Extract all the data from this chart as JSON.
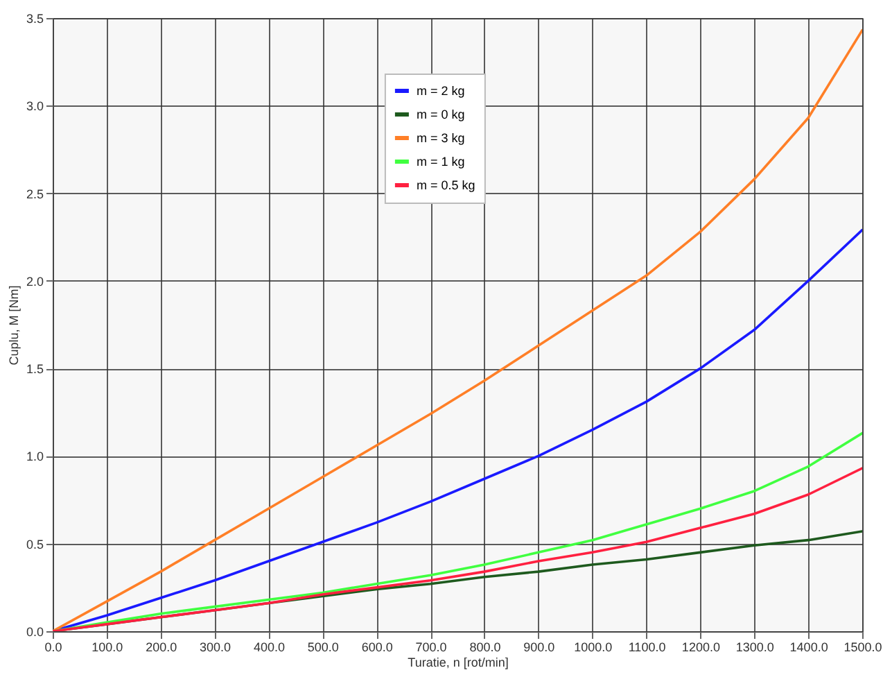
{
  "chart_data": {
    "type": "line",
    "xlabel": "Turatie, n [rot/min]",
    "ylabel": "Cuplu, M [Nm]",
    "x": [
      0,
      100,
      200,
      300,
      400,
      500,
      600,
      700,
      800,
      900,
      1000,
      1100,
      1200,
      1300,
      1400,
      1500
    ],
    "series": [
      {
        "name": "m = 2 kg",
        "color": "#1a1aff",
        "values": [
          0,
          0.09,
          0.19,
          0.29,
          0.4,
          0.51,
          0.62,
          0.74,
          0.87,
          1.0,
          1.15,
          1.31,
          1.5,
          1.72,
          2.0,
          2.29
        ]
      },
      {
        "name": "m = 0 kg",
        "color": "#1e5a1e",
        "values": [
          0,
          0.04,
          0.08,
          0.12,
          0.16,
          0.2,
          0.24,
          0.27,
          0.31,
          0.34,
          0.38,
          0.41,
          0.45,
          0.49,
          0.52,
          0.57
        ]
      },
      {
        "name": "m = 3 kg",
        "color": "#ff7f27",
        "values": [
          0,
          0.17,
          0.34,
          0.52,
          0.7,
          0.88,
          1.06,
          1.24,
          1.43,
          1.63,
          1.83,
          2.03,
          2.28,
          2.58,
          2.93,
          3.43
        ]
      },
      {
        "name": "m = 1 kg",
        "color": "#40ff40",
        "values": [
          0,
          0.05,
          0.1,
          0.14,
          0.18,
          0.22,
          0.27,
          0.32,
          0.38,
          0.45,
          0.52,
          0.61,
          0.7,
          0.8,
          0.94,
          1.13
        ]
      },
      {
        "name": "m = 0.5 kg",
        "color": "#ff2040",
        "values": [
          0,
          0.04,
          0.08,
          0.12,
          0.16,
          0.21,
          0.25,
          0.29,
          0.34,
          0.4,
          0.45,
          0.51,
          0.59,
          0.67,
          0.78,
          0.93
        ]
      }
    ],
    "xlim": [
      0,
      1500
    ],
    "xticks": [
      {
        "value": 0,
        "label": "0.0"
      },
      {
        "value": 100,
        "label": "100.0"
      },
      {
        "value": 200,
        "label": "200.0"
      },
      {
        "value": 300,
        "label": "300.0"
      },
      {
        "value": 400,
        "label": "400.0"
      },
      {
        "value": 500,
        "label": "500.0"
      },
      {
        "value": 600,
        "label": "600.0"
      },
      {
        "value": 700,
        "label": "700.0"
      },
      {
        "value": 800,
        "label": "800.0"
      },
      {
        "value": 900,
        "label": "900.0"
      },
      {
        "value": 1000,
        "label": "1000.0"
      },
      {
        "value": 1100,
        "label": "1100.0"
      },
      {
        "value": 1200,
        "label": "1200.0"
      },
      {
        "value": 1300,
        "label": "1300.0"
      },
      {
        "value": 1400,
        "label": "1400.0"
      },
      {
        "value": 1500,
        "label": "1500.0"
      }
    ],
    "ylim": [
      0,
      3.5
    ],
    "yticks": [
      {
        "value": 0,
        "label": "0.0"
      },
      {
        "value": 0.5,
        "label": "0.5"
      },
      {
        "value": 1,
        "label": "1.0"
      },
      {
        "value": 1.5,
        "label": "1.5"
      },
      {
        "value": 2,
        "label": "2.0"
      },
      {
        "value": 2.5,
        "label": "2.5"
      },
      {
        "value": 3,
        "label": "3.0"
      },
      {
        "value": 3.5,
        "label": "3.5"
      }
    ],
    "grid": true,
    "legend": "top",
    "marker": "none",
    "line_style": "solid"
  }
}
